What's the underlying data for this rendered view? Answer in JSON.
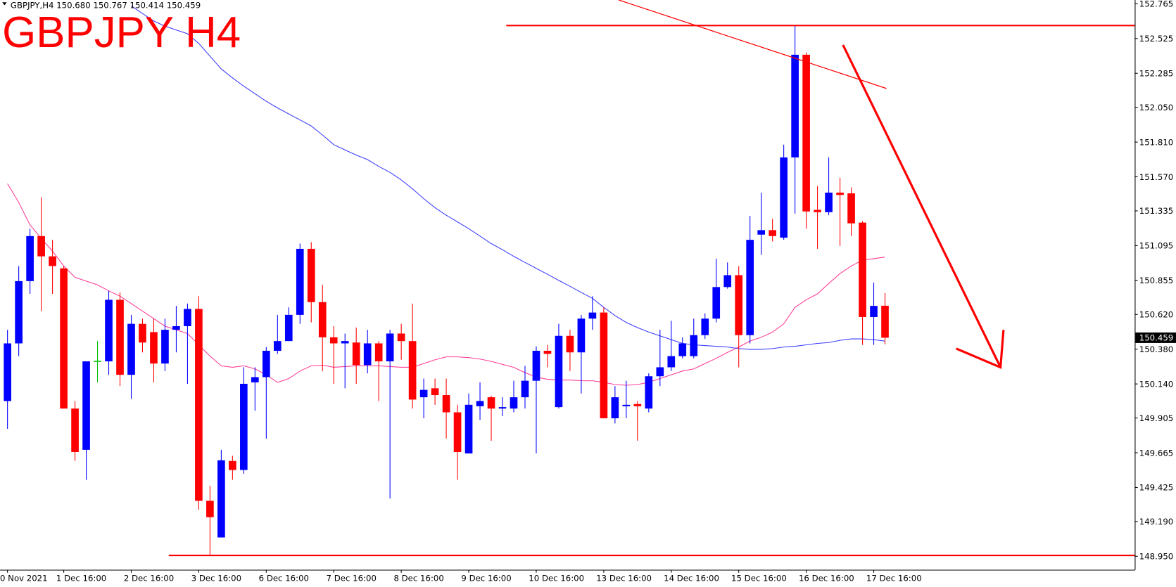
{
  "chart_data": {
    "type": "candlestick",
    "title": "GBPJPY H4",
    "header": "GBPJPY,H4  150.680 150.767 150.414 150.459",
    "categories": [
      "0 Nov 2021",
      null,
      null,
      null,
      null,
      "1 Dec 16:00",
      null,
      null,
      null,
      null,
      null,
      "2 Dec 16:00",
      null,
      null,
      null,
      null,
      null,
      "3 Dec 16:00",
      null,
      null,
      null,
      null,
      null,
      "6 Dec 16:00",
      null,
      null,
      null,
      null,
      null,
      "7 Dec 16:00",
      null,
      null,
      null,
      null,
      null,
      "8 Dec 16:00",
      null,
      null,
      null,
      null,
      null,
      "9 Dec 16:00",
      null,
      null,
      null,
      null,
      null,
      "10 Dec 16:00",
      null,
      null,
      null,
      null,
      null,
      "13 Dec 16:00",
      null,
      null,
      null,
      null,
      null,
      "14 Dec 16:00",
      null,
      null,
      null,
      null,
      null,
      "15 Dec 16:00",
      null,
      null,
      null,
      null,
      null,
      "16 Dec 16:00",
      null,
      null,
      null,
      null,
      null,
      "17 Dec 16:00",
      null
    ],
    "open": [
      150.022,
      150.42,
      150.85,
      151.161,
      151.021,
      150.938,
      149.97,
      149.685,
      150.296,
      150.296,
      150.721,
      150.203,
      150.555,
      150.498,
      150.281,
      150.514,
      150.539,
      150.658,
      149.333,
      149.08,
      149.608,
      149.546,
      150.151,
      150.187,
      150.369,
      150.436,
      150.617,
      151.073,
      150.705,
      150.462,
      150.42,
      150.426,
      150.27,
      150.42,
      150.296,
      150.488,
      150.436,
      150.048,
      150.11,
      150.063,
      149.944,
      149.66,
      149.986,
      150.048,
      149.97,
      149.97,
      150.048,
      150.162,
      150.369,
      149.98,
      150.472,
      150.358,
      150.591,
      150.633,
      149.903,
      149.986,
      150.001,
      149.97,
      150.193,
      150.255,
      150.332,
      150.332,
      150.477,
      150.591,
      150.809,
      150.891,
      150.477,
      151.171,
      151.202,
      151.15,
      151.704,
      152.413,
      151.342,
      151.326,
      151.461,
      151.456,
      151.254,
      150.602,
      150.68
    ],
    "high": [
      150.514,
      150.954,
      151.212,
      151.43,
      151.135,
      150.954,
      150.022,
      150.296,
      150.436,
      150.783,
      150.772,
      150.617,
      150.591,
      150.591,
      150.591,
      150.679,
      150.695,
      150.746,
      149.437,
      149.685,
      149.644,
      150.255,
      150.255,
      150.395,
      150.617,
      150.669,
      151.109,
      151.119,
      150.824,
      150.539,
      150.488,
      150.529,
      150.514,
      150.436,
      150.514,
      150.555,
      150.695,
      150.177,
      150.177,
      150.177,
      149.996,
      150.074,
      150.151,
      150.058,
      150.048,
      150.162,
      150.265,
      150.4,
      150.41,
      150.555,
      150.514,
      150.617,
      150.746,
      150.669,
      150.125,
      150.162,
      150.022,
      150.213,
      150.514,
      150.576,
      150.462,
      150.591,
      150.627,
      151.005,
      150.979,
      150.954,
      151.3,
      151.461,
      151.28,
      151.792,
      152.61,
      152.429,
      151.507,
      151.704,
      151.564,
      151.497,
      151.264,
      150.84,
      150.767
    ],
    "low": [
      149.83,
      150.332,
      150.762,
      150.643,
      150.762,
      149.97,
      149.608,
      149.478,
      150.151,
      150.203,
      150.125,
      150.037,
      150.358,
      150.151,
      150.229,
      150.358,
      150.141,
      149.271,
      148.961,
      149.08,
      149.478,
      149.52,
      149.955,
      149.763,
      150.348,
      150.436,
      150.555,
      150.565,
      150.229,
      150.141,
      150.11,
      150.141,
      150.213,
      150.022,
      149.349,
      150.307,
      149.97,
      149.903,
      149.996,
      149.763,
      149.478,
      149.66,
      149.892,
      149.748,
      149.918,
      149.944,
      149.97,
      149.66,
      150.255,
      149.97,
      150.229,
      150.074,
      150.514,
      149.903,
      149.867,
      149.903,
      149.748,
      149.944,
      150.125,
      150.229,
      150.317,
      150.317,
      150.451,
      150.565,
      150.798,
      150.255,
      150.42,
      151.031,
      151.124,
      151.135,
      151.316,
      151.212,
      151.073,
      151.305,
      151.093,
      151.161,
      150.41,
      150.41,
      150.414
    ],
    "close": [
      150.42,
      150.85,
      151.161,
      151.021,
      150.954,
      149.97,
      149.67,
      150.296,
      150.296,
      150.721,
      150.203,
      150.555,
      150.426,
      150.281,
      150.514,
      150.539,
      150.658,
      149.333,
      149.22,
      149.613,
      149.546,
      150.141,
      150.187,
      150.369,
      150.436,
      150.617,
      151.073,
      150.705,
      150.462,
      150.42,
      150.436,
      150.27,
      150.42,
      150.296,
      150.488,
      150.436,
      150.032,
      150.099,
      150.063,
      149.944,
      149.67,
      149.996,
      150.022,
      149.97,
      149.98,
      150.048,
      150.162,
      150.369,
      150.348,
      150.472,
      150.358,
      150.591,
      150.633,
      149.903,
      150.048,
      149.996,
      149.986,
      150.193,
      150.255,
      150.332,
      150.42,
      150.477,
      150.591,
      150.809,
      150.891,
      150.477,
      151.135,
      151.202,
      151.161,
      151.704,
      152.413,
      151.331,
      151.326,
      151.461,
      151.445,
      151.249,
      150.602,
      150.679,
      150.459
    ],
    "up_color": "#0000ff",
    "down_color": "#ff0000",
    "doji_color": "#00c000",
    "overlays": [
      {
        "color": "#ff3c96",
        "values": [
          151.523,
          151.393,
          151.238,
          151.145,
          151.057,
          150.954,
          150.876,
          150.85,
          150.824,
          150.783,
          150.746,
          150.695,
          150.643,
          150.591,
          150.539,
          150.514,
          150.488,
          150.41,
          150.332,
          150.265,
          150.255,
          150.265,
          150.244,
          150.203,
          150.151,
          150.177,
          150.229,
          150.265,
          150.27,
          150.255,
          150.26,
          150.265,
          150.265,
          150.265,
          150.26,
          150.255,
          150.255,
          150.281,
          150.307,
          150.327,
          150.327,
          150.322,
          150.312,
          150.296,
          150.275,
          150.255,
          150.218,
          150.187,
          150.172,
          150.167,
          150.167,
          150.162,
          150.162,
          150.151,
          150.136,
          150.131,
          150.136,
          150.151,
          150.177,
          150.203,
          150.229,
          150.244,
          150.281,
          150.317,
          150.358,
          150.395,
          150.436,
          150.462,
          150.498,
          150.555,
          150.669,
          150.721,
          150.762,
          150.834,
          150.902,
          150.954,
          150.995,
          151.005,
          151.016
        ]
      },
      {
        "color": "#3b3bff",
        "values": [
          null,
          null,
          null,
          null,
          null,
          null,
          null,
          null,
          null,
          null,
          null,
          152.75,
          152.698,
          152.646,
          152.61,
          152.584,
          152.558,
          152.491,
          152.403,
          152.315,
          152.253,
          152.196,
          152.144,
          152.092,
          152.046,
          152.004,
          151.963,
          151.921,
          151.859,
          151.792,
          151.756,
          151.72,
          151.689,
          151.642,
          151.601,
          151.549,
          151.487,
          151.419,
          151.357,
          151.305,
          151.259,
          151.212,
          151.161,
          151.109,
          151.067,
          151.021,
          150.979,
          150.938,
          150.897,
          150.855,
          150.814,
          150.772,
          150.731,
          150.669,
          150.612,
          150.565,
          150.529,
          150.498,
          150.472,
          150.446,
          150.42,
          150.41,
          150.405,
          150.4,
          150.395,
          150.384,
          150.379,
          150.379,
          150.384,
          150.395,
          150.4,
          150.41,
          150.42,
          150.426,
          150.441,
          150.451,
          150.451,
          150.446,
          150.436
        ]
      }
    ],
    "levels": [
      152.615,
      148.956
    ],
    "level_color": "#ff0000",
    "last_price": 150.459,
    "ylim": [
      148.857,
      152.791
    ],
    "yticks": [
      152.765,
      152.525,
      152.285,
      {
        "value": 152.05,
        "label": "152.050"
      },
      {
        "value": 151.81,
        "label": "151.810"
      },
      {
        "value": 151.57,
        "label": "151.570"
      },
      151.335,
      151.095,
      150.855,
      {
        "value": 150.62,
        "label": "150.620"
      },
      {
        "value": 150.38,
        "label": "150.380"
      },
      {
        "value": 150.14,
        "label": "150.140"
      },
      149.905,
      149.665,
      149.425,
      {
        "value": 149.19,
        "label": "149.190"
      },
      {
        "value": 148.95,
        "label": "148.950"
      }
    ],
    "grid": false
  }
}
